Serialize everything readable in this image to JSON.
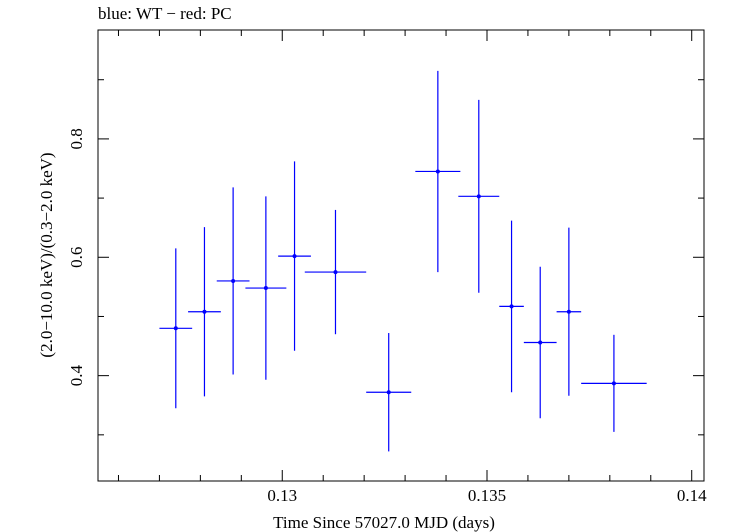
{
  "chart_data": {
    "type": "scatter",
    "title": "blue: WT − red: PC",
    "xlabel": "Time Since 57027.0 MJD (days)",
    "ylabel": "(2.0−10.0 keV)/(0.3−2.0 keV)",
    "xlim": [
      0.1255,
      0.1403
    ],
    "ylim": [
      0.222,
      0.984
    ],
    "x_ticks": [
      0.13,
      0.135,
      0.14
    ],
    "x_tick_labels": [
      "0.13",
      "0.135",
      "0.14"
    ],
    "y_ticks": [
      0.4,
      0.6,
      0.8
    ],
    "y_tick_labels": [
      "0.4",
      "0.6",
      "0.8"
    ],
    "grid": false,
    "series": [
      {
        "color": "#0000ff",
        "points": [
          {
            "x": 0.1274,
            "xerr": 0.0004,
            "y": 0.48,
            "yerr": 0.135
          },
          {
            "x": 0.1281,
            "xerr": 0.0004,
            "y": 0.508,
            "yerr": 0.143
          },
          {
            "x": 0.1288,
            "xerr": 0.0004,
            "y": 0.56,
            "yerr": 0.158
          },
          {
            "x": 0.1296,
            "xerr": 0.0005,
            "y": 0.548,
            "yerr": 0.155
          },
          {
            "x": 0.1303,
            "xerr": 0.0004,
            "y": 0.602,
            "yerr": 0.16
          },
          {
            "x": 0.1313,
            "xerr": 0.00075,
            "y": 0.575,
            "yerr": 0.105
          },
          {
            "x": 0.1326,
            "xerr": 0.00055,
            "y": 0.372,
            "yerr": 0.1
          },
          {
            "x": 0.1338,
            "xerr": 0.00055,
            "y": 0.745,
            "yerr": 0.17
          },
          {
            "x": 0.1348,
            "xerr": 0.0005,
            "y": 0.703,
            "yerr": 0.163
          },
          {
            "x": 0.1356,
            "xerr": 0.0003,
            "y": 0.517,
            "yerr": 0.145
          },
          {
            "x": 0.1363,
            "xerr": 0.0004,
            "y": 0.456,
            "yerr": 0.128
          },
          {
            "x": 0.137,
            "xerr": 0.0003,
            "y": 0.508,
            "yerr": 0.142
          },
          {
            "x": 0.1381,
            "xerr": 0.0008,
            "y": 0.387,
            "yerr": 0.082
          }
        ]
      }
    ]
  }
}
